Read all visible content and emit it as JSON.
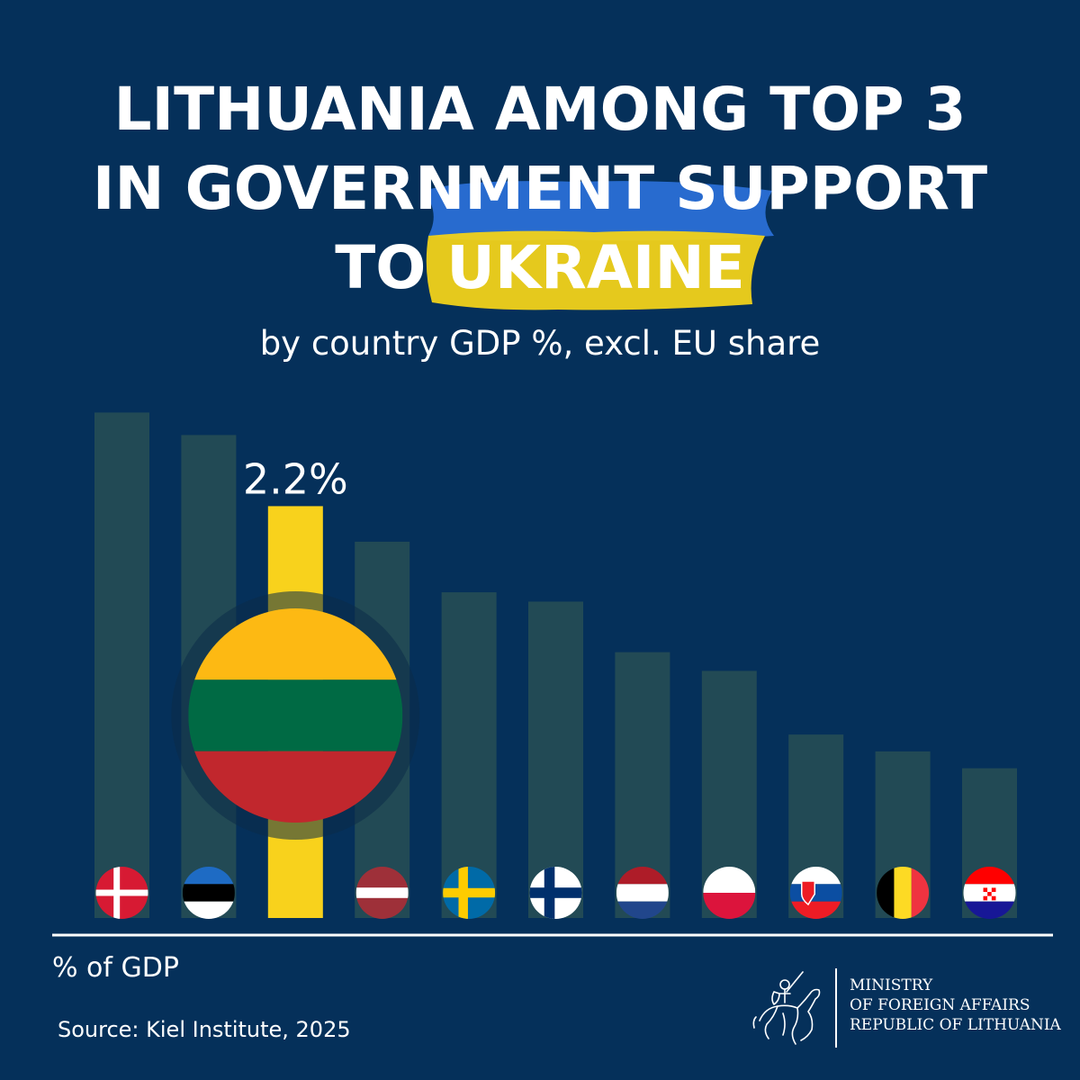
{
  "title": {
    "line1": "LITHUANIA AMONG TOP 3",
    "line2": "IN GOVERNMENT SUPPORT",
    "line3_prefix": "TO ",
    "line3_highlight": "UKRAINE"
  },
  "subtitle": "by country GDP %, excl. EU share",
  "colors": {
    "background": "#05305a",
    "bar": "#224a55",
    "highlight_bar": "#f8d21c",
    "ukraine_blue": "#2a6fd6",
    "ukraine_yellow": "#f1d21a",
    "axis": "#ffffff"
  },
  "chart_data": {
    "type": "bar",
    "categories": [
      "Denmark",
      "Estonia",
      "Lithuania",
      "Latvia",
      "Sweden",
      "Finland",
      "Netherlands",
      "Poland",
      "Slovakia",
      "Belgium",
      "Croatia"
    ],
    "values": [
      2.7,
      2.58,
      2.2,
      2.01,
      1.74,
      1.69,
      1.42,
      1.32,
      0.98,
      0.89,
      0.8
    ],
    "highlight": "Lithuania",
    "highlight_label": "2.2%",
    "ylabel": "% of GDP",
    "ylim": [
      0,
      2.75
    ],
    "grid": false
  },
  "flags": {
    "Denmark": "flag-denmark-icon",
    "Estonia": "flag-estonia-icon",
    "Lithuania": "flag-lithuania-icon",
    "Latvia": "flag-latvia-icon",
    "Sweden": "flag-sweden-icon",
    "Finland": "flag-finland-icon",
    "Netherlands": "flag-netherlands-icon",
    "Poland": "flag-poland-icon",
    "Slovakia": "flag-slovakia-icon",
    "Belgium": "flag-belgium-icon",
    "Croatia": "flag-croatia-icon"
  },
  "axis_label": "% of GDP",
  "source": "Source: Kiel Institute, 2025",
  "ministry": {
    "line1": "MINISTRY",
    "line2": "OF FOREIGN AFFAIRS",
    "line3": "REPUBLIC OF LITHUANIA",
    "emblem": "vytis-emblem-icon"
  }
}
